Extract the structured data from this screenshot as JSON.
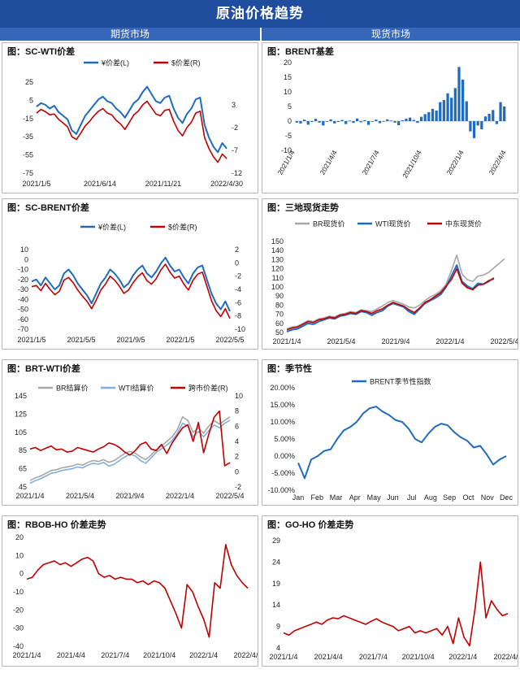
{
  "header": {
    "title": "原油价格趋势",
    "left_section": "期货市场",
    "right_section": "现货市场"
  },
  "colors": {
    "banner": "#1f4e9e",
    "subhead": "#3566b8",
    "blue": "#1f6bbf",
    "red": "#c00000",
    "gray": "#a6a6a6",
    "lightblue": "#7fb0dd"
  },
  "chart_data": [
    {
      "id": "sc_wti",
      "type": "line",
      "title": "图：SC-WTI价差",
      "x_ticks": [
        "2021/1/5",
        "2021/6/14",
        "2021/11/21",
        "2022/4/30"
      ],
      "y_left": {
        "ticks": [
          25,
          5,
          -15,
          -35,
          -55,
          -75
        ],
        "range": [
          -75,
          25
        ]
      },
      "y_right": {
        "ticks": [
          3,
          -2,
          -7,
          -12
        ],
        "range": [
          -12,
          8
        ]
      },
      "series": [
        {
          "name": "¥价差(L)",
          "axis": "left",
          "color": "#1f6bbf",
          "values": [
            -2,
            2,
            0,
            -4,
            -1,
            -8,
            -12,
            -16,
            -28,
            -32,
            -22,
            -12,
            -6,
            0,
            6,
            9,
            4,
            2,
            -4,
            -8,
            -14,
            -6,
            2,
            6,
            14,
            20,
            12,
            4,
            2,
            8,
            10,
            -4,
            -14,
            -20,
            -10,
            -4,
            6,
            8,
            -22,
            -36,
            -46,
            -52,
            -42,
            -48
          ]
        },
        {
          "name": "$价差(R)",
          "axis": "right",
          "color": "#c00000",
          "values": [
            1.2,
            2.0,
            1.5,
            0.8,
            1.0,
            -0.2,
            -1.0,
            -1.8,
            -4.0,
            -4.6,
            -3.2,
            -1.6,
            -0.6,
            0.6,
            1.6,
            2.2,
            1.2,
            0.8,
            -0.4,
            -1.2,
            -2.4,
            -0.8,
            0.8,
            1.6,
            3.0,
            3.8,
            2.4,
            1.0,
            0.6,
            1.8,
            2.0,
            -0.6,
            -2.6,
            -3.8,
            -2.0,
            -0.8,
            1.2,
            1.6,
            -4.2,
            -6.6,
            -8.4,
            -9.6,
            -7.8,
            -8.8
          ]
        }
      ]
    },
    {
      "id": "brent_basis",
      "type": "bar",
      "title": "图：BRENT基差",
      "x_ticks": [
        "2021/1/4",
        "2021/4/4",
        "2021/7/4",
        "2021/10/4",
        "2022/1/4",
        "2022/4/4"
      ],
      "y": {
        "ticks": [
          20,
          15,
          10,
          5,
          0,
          -5,
          -10
        ],
        "range": [
          -10,
          20
        ]
      },
      "values": [
        -0.5,
        -0.8,
        0.5,
        -1.2,
        -0.3,
        0.8,
        -0.5,
        -1.5,
        -0.2,
        0.6,
        -0.8,
        -0.3,
        0.4,
        -1.0,
        0.2,
        -0.6,
        0.9,
        -0.4,
        0.3,
        -1.3,
        -0.2,
        0.5,
        -0.7,
        -0.1,
        0.6,
        0.2,
        -0.5,
        -1.4,
        0.3,
        0.8,
        1.2,
        0.4,
        -0.6,
        1.5,
        2.4,
        3.1,
        4.2,
        3.6,
        6.5,
        7.2,
        9.5,
        8.0,
        11.3,
        18.5,
        14.2,
        6.8,
        -3.5,
        -5.8,
        -1.5,
        -2.8,
        1.6,
        2.5,
        3.8,
        -1.0,
        6.5,
        5.0
      ]
    },
    {
      "id": "sc_brent",
      "type": "line",
      "title": "图：SC-BRENT价差",
      "x_ticks": [
        "2021/1/5",
        "2021/5/5",
        "2021/9/5",
        "2022/1/5",
        "2022/5/5"
      ],
      "y_left": {
        "ticks": [
          10,
          0,
          -10,
          -20,
          -30,
          -40,
          -50,
          -60,
          -70
        ],
        "range": [
          -70,
          10
        ]
      },
      "y_right": {
        "ticks": [
          2,
          0,
          -2,
          -4,
          -6,
          -8,
          -10
        ],
        "range": [
          -10,
          2
        ]
      },
      "series": [
        {
          "name": "¥价差(L)",
          "axis": "left",
          "color": "#1f6bbf",
          "values": [
            -22,
            -20,
            -26,
            -18,
            -24,
            -30,
            -26,
            -14,
            -10,
            -16,
            -24,
            -30,
            -36,
            -44,
            -34,
            -24,
            -18,
            -10,
            -14,
            -20,
            -28,
            -24,
            -16,
            -10,
            -6,
            -14,
            -18,
            -12,
            -4,
            2,
            -6,
            -12,
            -10,
            -18,
            -24,
            -14,
            -8,
            -6,
            -20,
            -34,
            -44,
            -50,
            -42,
            -52
          ]
        },
        {
          "name": "$价差(R)",
          "axis": "right",
          "color": "#c00000",
          "values": [
            -3.6,
            -3.4,
            -4.2,
            -3.1,
            -4.0,
            -4.8,
            -4.3,
            -2.6,
            -2.2,
            -3.0,
            -4.1,
            -5.0,
            -5.8,
            -6.9,
            -5.6,
            -4.1,
            -3.2,
            -2.0,
            -2.6,
            -3.5,
            -4.6,
            -4.1,
            -3.0,
            -2.1,
            -1.5,
            -2.7,
            -3.2,
            -2.4,
            -1.1,
            -0.2,
            -1.4,
            -2.3,
            -2.0,
            -3.2,
            -4.1,
            -2.6,
            -1.7,
            -1.4,
            -3.5,
            -5.7,
            -7.2,
            -8.1,
            -6.9,
            -8.4
          ]
        }
      ]
    },
    {
      "id": "three_spot",
      "type": "line",
      "title": "图：三地现货走势",
      "x_ticks": [
        "2021/1/4",
        "2021/5/4",
        "2021/9/4",
        "2022/1/4",
        "2022/5/4"
      ],
      "y": {
        "ticks": [
          150,
          140,
          130,
          120,
          110,
          100,
          90,
          80,
          70,
          60,
          50
        ],
        "range": [
          50,
          150
        ]
      },
      "series": [
        {
          "name": "BR现货价",
          "color": "#a6a6a6",
          "values": [
            54,
            56,
            57,
            60,
            63,
            62,
            65,
            66,
            68,
            67,
            70,
            71,
            73,
            72,
            75,
            74,
            73,
            76,
            79,
            83,
            85,
            83,
            81,
            78,
            77,
            80,
            85,
            89,
            92,
            96,
            103,
            118,
            135,
            114,
            108,
            106,
            112,
            113,
            116,
            121,
            126,
            131
          ]
        },
        {
          "name": "WTI现货价",
          "color": "#1f6bbf",
          "values": [
            51,
            53,
            54,
            57,
            60,
            59,
            62,
            64,
            66,
            65,
            68,
            69,
            71,
            70,
            73,
            72,
            69,
            72,
            74,
            79,
            82,
            80,
            78,
            73,
            70,
            76,
            82,
            85,
            88,
            92,
            100,
            112,
            124,
            106,
            101,
            98,
            104,
            103,
            106,
            110
          ]
        },
        {
          "name": "中东现货价",
          "color": "#c00000",
          "values": [
            53,
            55,
            56,
            59,
            62,
            61,
            64,
            65,
            67,
            66,
            69,
            70,
            72,
            71,
            74,
            73,
            71,
            74,
            76,
            80,
            83,
            81,
            79,
            75,
            72,
            77,
            83,
            86,
            90,
            94,
            101,
            108,
            120,
            104,
            99,
            97,
            102,
            103,
            107,
            109
          ]
        }
      ]
    },
    {
      "id": "brt_wti",
      "type": "line",
      "title": "图：BRT-WTI价差",
      "x_ticks": [
        "2021/1/4",
        "2021/5/4",
        "2021/9/4",
        "2022/1/4",
        "2022/5/4"
      ],
      "y_left": {
        "ticks": [
          145,
          125,
          105,
          85,
          65,
          45
        ],
        "range": [
          45,
          145
        ]
      },
      "y_right": {
        "ticks": [
          10,
          8,
          6,
          4,
          2,
          0,
          -2
        ],
        "range": [
          -2,
          10
        ]
      },
      "series": [
        {
          "name": "BR结算价",
          "axis": "left",
          "color": "#a6a6a6",
          "values": [
            52,
            55,
            57,
            60,
            63,
            64,
            66,
            67,
            68,
            70,
            69,
            72,
            74,
            73,
            75,
            72,
            74,
            78,
            82,
            84,
            82,
            78,
            75,
            80,
            86,
            90,
            95,
            100,
            108,
            122,
            118,
            105,
            110,
            104,
            112,
            118,
            114,
            118,
            122
          ]
        },
        {
          "name": "WTI结算价",
          "axis": "left",
          "color": "#7fb0dd",
          "values": [
            49,
            52,
            54,
            57,
            60,
            61,
            63,
            64,
            65,
            67,
            66,
            69,
            71,
            70,
            72,
            68,
            70,
            74,
            78,
            81,
            79,
            74,
            71,
            77,
            83,
            87,
            91,
            96,
            104,
            115,
            112,
            100,
            106,
            100,
            107,
            113,
            110,
            115,
            118
          ]
        },
        {
          "name": "跨市价差(R)",
          "axis": "right",
          "color": "#c00000",
          "values": [
            3.0,
            3.2,
            2.8,
            3.1,
            3.4,
            2.9,
            3.0,
            2.6,
            2.7,
            3.2,
            3.0,
            2.8,
            2.6,
            3.0,
            3.3,
            3.8,
            3.6,
            3.2,
            2.6,
            2.2,
            2.8,
            3.6,
            3.9,
            3.0,
            2.8,
            3.6,
            2.4,
            3.8,
            4.8,
            5.8,
            6.2,
            4.0,
            6.5,
            2.5,
            5.0,
            7.2,
            8.0,
            0.8,
            1.2
          ]
        }
      ]
    },
    {
      "id": "seasonal",
      "type": "line",
      "title": "图：季节性",
      "x_ticks": [
        "Jan",
        "Feb",
        "Mar",
        "Apr",
        "May",
        "Jun",
        "Jul",
        "Aug",
        "Sep",
        "Oct",
        "Nov",
        "Dec"
      ],
      "y": {
        "ticks": [
          "20.00%",
          "15.00%",
          "10.00%",
          "5.00%",
          "0.00%",
          "-5.00%",
          "-10.00%"
        ],
        "range": [
          -10,
          20
        ]
      },
      "series": [
        {
          "name": "BRENT季节性指数",
          "color": "#1f6bbf",
          "values": [
            -2.0,
            -6.5,
            -1.0,
            0.0,
            1.5,
            2.0,
            5.0,
            7.5,
            8.5,
            10.0,
            12.5,
            14.0,
            14.5,
            13.0,
            12.0,
            10.5,
            10.0,
            8.0,
            5.0,
            4.0,
            6.5,
            8.5,
            9.5,
            9.0,
            7.0,
            5.5,
            4.5,
            2.5,
            3.0,
            0.5,
            -2.5,
            -1.0,
            0.0
          ]
        }
      ]
    },
    {
      "id": "rbob_ho",
      "type": "line",
      "title": "图：RBOB-HO 价差走势",
      "x_ticks": [
        "2021/1/4",
        "2021/4/4",
        "2021/7/4",
        "2021/10/4",
        "2022/1/4",
        "2022/4/4"
      ],
      "y": {
        "ticks": [
          20,
          10,
          0,
          -10,
          -20,
          -30,
          -40
        ],
        "range": [
          -40,
          20
        ]
      },
      "series": [
        {
          "name": "RBOB-HO",
          "color": "#c00000",
          "values": [
            -3,
            -2,
            2,
            5,
            6,
            7,
            5,
            6,
            4,
            6,
            8,
            9,
            7,
            0,
            -2,
            -1,
            -3,
            -2,
            -3,
            -3,
            -5,
            -4,
            -6,
            -4,
            -5,
            -8,
            -15,
            -22,
            -30,
            -6,
            -10,
            -18,
            -25,
            -35,
            -5,
            -8,
            16,
            5,
            -1,
            -5,
            -8
          ]
        }
      ]
    },
    {
      "id": "go_ho",
      "type": "line",
      "title": "图：GO-HO 价差走势",
      "x_ticks": [
        "2021/1/4",
        "2021/4/4",
        "2021/7/4",
        "2021/10/4",
        "2022/1/4",
        "2022/4/4"
      ],
      "y": {
        "ticks": [
          29,
          24,
          19,
          14,
          9,
          4
        ],
        "range": [
          4,
          29
        ]
      },
      "series": [
        {
          "name": "GO-HO",
          "color": "#c00000",
          "values": [
            7.5,
            7.0,
            8.0,
            8.5,
            9.0,
            9.5,
            10.0,
            9.5,
            10.5,
            11.0,
            10.8,
            11.5,
            11.0,
            10.5,
            10.0,
            9.5,
            10.2,
            10.8,
            10.0,
            9.5,
            9.0,
            8.0,
            8.5,
            9.0,
            7.5,
            8.0,
            7.5,
            8.0,
            8.5,
            7.0,
            9.0,
            5.0,
            11.0,
            6.5,
            4.5,
            13.0,
            24.0,
            11.0,
            15.0,
            13.0,
            11.5,
            12.0
          ]
        }
      ]
    }
  ]
}
